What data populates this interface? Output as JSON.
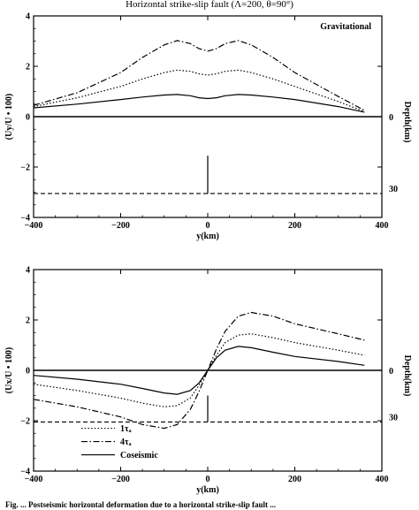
{
  "title": "Horizontal strike-slip fault (Λ=200, θ=90°)",
  "caption": "Fig. ... Postseismic horizontal deformation due to a horizontal strike-slip fault ...",
  "chart_data": [
    {
      "type": "line",
      "title": "",
      "annotation": "Gravitational",
      "xlabel": "y(km)",
      "ylabel": "(Uy/U • 100)",
      "right_label": "Depth(km)",
      "right_ticks": [
        "0",
        "30"
      ],
      "xlim": [
        -400,
        400
      ],
      "ylim": [
        -4,
        4
      ],
      "x_ticks": [
        "-400",
        "-200",
        "0",
        "200",
        "400"
      ],
      "y_ticks": [
        "-4",
        "-2",
        "0",
        "2",
        "4"
      ],
      "series": [
        {
          "style": "dashdot",
          "x": [
            -400,
            -300,
            -200,
            -150,
            -100,
            -70,
            -40,
            -20,
            0,
            20,
            40,
            70,
            100,
            150,
            200,
            300,
            360
          ],
          "values": [
            0.45,
            0.95,
            1.75,
            2.35,
            2.85,
            3.02,
            2.9,
            2.7,
            2.6,
            2.7,
            2.9,
            3.02,
            2.85,
            2.35,
            1.75,
            0.8,
            0.25
          ]
        },
        {
          "style": "dotted",
          "x": [
            -400,
            -300,
            -200,
            -150,
            -100,
            -70,
            -40,
            -20,
            0,
            20,
            40,
            70,
            100,
            150,
            200,
            300,
            360
          ],
          "values": [
            0.4,
            0.75,
            1.2,
            1.5,
            1.75,
            1.85,
            1.8,
            1.7,
            1.65,
            1.7,
            1.8,
            1.85,
            1.75,
            1.5,
            1.2,
            0.6,
            0.2
          ]
        },
        {
          "style": "solid",
          "x": [
            -400,
            -300,
            -200,
            -150,
            -100,
            -70,
            -40,
            -20,
            0,
            20,
            40,
            70,
            100,
            150,
            200,
            300,
            360
          ],
          "values": [
            0.35,
            0.5,
            0.68,
            0.78,
            0.86,
            0.88,
            0.83,
            0.75,
            0.72,
            0.75,
            0.83,
            0.88,
            0.86,
            0.78,
            0.68,
            0.4,
            0.18
          ]
        }
      ],
      "fault_y": [
        -3.05,
        -1.55
      ],
      "surface_y": 0,
      "depth_line_y": -3.05
    },
    {
      "type": "line",
      "title": "",
      "xlabel": "y(km)",
      "ylabel": "(Ux/U • 100)",
      "right_label": "Depth(km)",
      "right_ticks": [
        "0",
        "30"
      ],
      "xlim": [
        -400,
        400
      ],
      "ylim": [
        -4,
        4
      ],
      "x_ticks": [
        "-400",
        "-200",
        "0",
        "200",
        "400"
      ],
      "y_ticks": [
        "-4",
        "-2",
        "0",
        "2",
        "4"
      ],
      "legend": [
        "1τₐ",
        "4τₐ",
        "Coseismic"
      ],
      "series": [
        {
          "name": "4τₐ",
          "style": "dashdot",
          "x": [
            -400,
            -300,
            -200,
            -150,
            -100,
            -70,
            -40,
            -20,
            0,
            20,
            40,
            70,
            100,
            150,
            200,
            300,
            360
          ],
          "values": [
            -1.15,
            -1.45,
            -1.85,
            -2.15,
            -2.3,
            -2.15,
            -1.55,
            -0.85,
            0,
            0.85,
            1.55,
            2.15,
            2.3,
            2.15,
            1.85,
            1.45,
            1.2
          ]
        },
        {
          "name": "1τₐ",
          "style": "dotted",
          "x": [
            -400,
            -300,
            -200,
            -150,
            -100,
            -70,
            -40,
            -20,
            0,
            20,
            40,
            70,
            100,
            150,
            200,
            300,
            360
          ],
          "values": [
            -0.55,
            -0.8,
            -1.1,
            -1.3,
            -1.45,
            -1.4,
            -1.1,
            -0.6,
            0,
            0.6,
            1.1,
            1.4,
            1.45,
            1.3,
            1.1,
            0.8,
            0.6
          ]
        },
        {
          "name": "Coseismic",
          "style": "solid",
          "x": [
            -400,
            -300,
            -200,
            -150,
            -100,
            -70,
            -40,
            -20,
            0,
            20,
            40,
            70,
            100,
            150,
            200,
            300,
            360
          ],
          "values": [
            -0.2,
            -0.35,
            -0.55,
            -0.72,
            -0.9,
            -0.95,
            -0.8,
            -0.5,
            0,
            0.5,
            0.8,
            0.95,
            0.9,
            0.72,
            0.55,
            0.35,
            0.2
          ]
        }
      ],
      "fault_y": [
        -2.05,
        -1.0
      ],
      "surface_y": 0,
      "depth_line_y": -2.05
    }
  ]
}
